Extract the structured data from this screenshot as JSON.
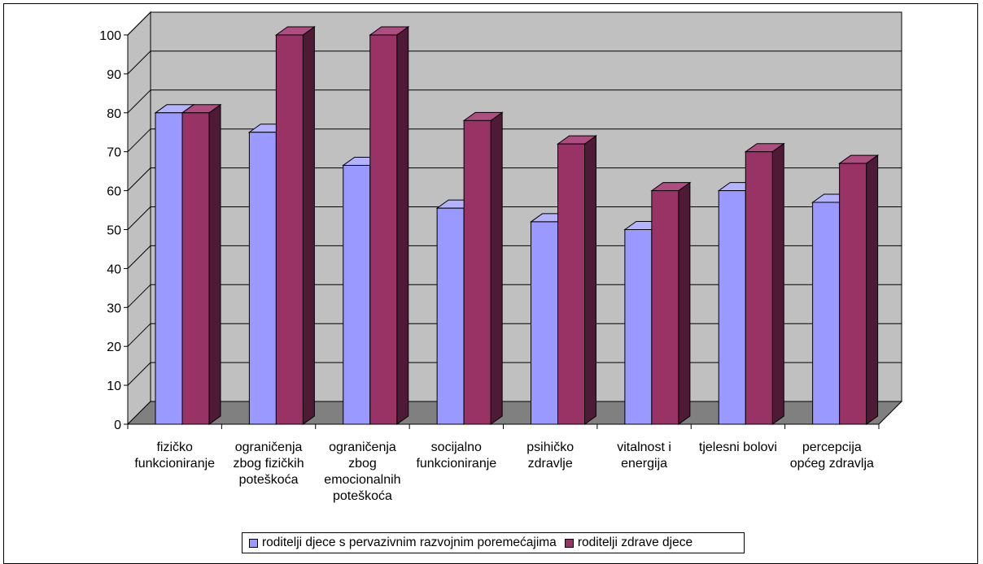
{
  "colors": {
    "series1_front": "#9999ff",
    "series1_side": "#5c5cb0",
    "series1_top": "#b3b3ff",
    "series2_front": "#993366",
    "series2_side": "#4f1a35",
    "series2_top": "#b04d80",
    "wall": "#c0c0c0",
    "floor": "#808080"
  },
  "chart_data": {
    "type": "bar",
    "style": "3d-clustered-column",
    "categories": [
      [
        "fizičko",
        "funkcioniranje"
      ],
      [
        "ograničenja",
        "zbog fizičkih",
        "poteškoća"
      ],
      [
        "ograničenja",
        "zbog",
        "emocionalnih",
        "poteškoća"
      ],
      [
        "socijalno",
        "funkcioniranje"
      ],
      [
        "psihičko",
        "zdravlje"
      ],
      [
        "vitalnost i",
        "energija"
      ],
      [
        "tjelesni bolovi"
      ],
      [
        "percepcija",
        "općeg zdravlja"
      ]
    ],
    "series": [
      {
        "name": "roditelji djece s pervazivnim razvojnim poremećajima",
        "values": [
          80,
          75,
          66.5,
          55.5,
          52,
          50,
          60,
          57
        ]
      },
      {
        "name": "roditelji zdrave djece",
        "values": [
          80,
          100,
          100,
          78,
          72,
          60,
          70,
          67
        ]
      }
    ],
    "ylim": [
      0,
      100
    ],
    "yticks": [
      "0",
      "10",
      "20",
      "30",
      "40",
      "50",
      "60",
      "70",
      "80",
      "90",
      "100"
    ],
    "grid": true,
    "legend_position": "bottom"
  }
}
